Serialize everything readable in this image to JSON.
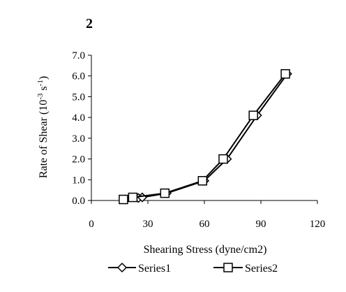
{
  "chart_data": {
    "type": "scatter",
    "title": "2",
    "xlabel": "Shearing Stress (dyne/cm2)",
    "ylabel": {
      "prefix": "Rate of Shear (10",
      "exp1": "-3",
      "mid": " s",
      "exp2": "-1",
      "suffix": ")"
    },
    "xlim": [
      0,
      120
    ],
    "ylim": [
      0,
      7
    ],
    "xticks": [
      0,
      30,
      60,
      90,
      120
    ],
    "xtick_labels": [
      "0",
      "30",
      "60",
      "90",
      "120"
    ],
    "yticks": [
      0,
      1,
      2,
      3,
      4,
      5,
      6,
      7
    ],
    "ytick_labels": [
      "0.0",
      "1.0",
      "2.0",
      "3.0",
      "4.0",
      "5.0",
      "6.0",
      "7.0"
    ],
    "grid": false,
    "legend_position": "bottom",
    "series": [
      {
        "name": "Series1",
        "marker": "diamond",
        "color": "#000000",
        "x": [
          18,
          25,
          27,
          40,
          60,
          72,
          88,
          104
        ],
        "y": [
          0.05,
          0.12,
          0.15,
          0.35,
          0.95,
          2.0,
          4.1,
          6.1
        ]
      },
      {
        "name": "Series2",
        "marker": "square",
        "color": "#000000",
        "x": [
          17,
          22,
          39,
          59,
          70,
          86,
          103
        ],
        "y": [
          0.05,
          0.15,
          0.35,
          0.95,
          2.0,
          4.1,
          6.1
        ]
      }
    ]
  }
}
